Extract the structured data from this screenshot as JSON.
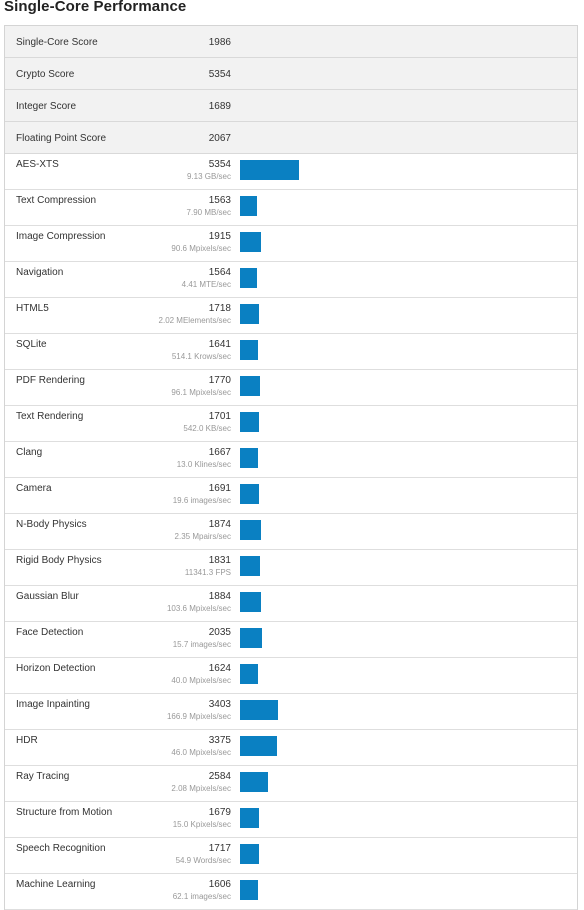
{
  "header": {
    "title": "Single-Core Performance"
  },
  "summary": [
    {
      "label": "Single-Core Score",
      "value": "1986"
    },
    {
      "label": "Crypto Score",
      "value": "5354"
    },
    {
      "label": "Integer Score",
      "value": "1689"
    },
    {
      "label": "Floating Point Score",
      "value": "2067"
    }
  ],
  "bar_color": "#0a80c2",
  "workloads": [
    {
      "label": "AES-XTS",
      "score": "5354",
      "rate": "9.13 GB/sec"
    },
    {
      "label": "Text Compression",
      "score": "1563",
      "rate": "7.90 MB/sec"
    },
    {
      "label": "Image Compression",
      "score": "1915",
      "rate": "90.6 Mpixels/sec"
    },
    {
      "label": "Navigation",
      "score": "1564",
      "rate": "4.41 MTE/sec"
    },
    {
      "label": "HTML5",
      "score": "1718",
      "rate": "2.02 MElements/sec"
    },
    {
      "label": "SQLite",
      "score": "1641",
      "rate": "514.1 Krows/sec"
    },
    {
      "label": "PDF Rendering",
      "score": "1770",
      "rate": "96.1 Mpixels/sec"
    },
    {
      "label": "Text Rendering",
      "score": "1701",
      "rate": "542.0 KB/sec"
    },
    {
      "label": "Clang",
      "score": "1667",
      "rate": "13.0 Klines/sec"
    },
    {
      "label": "Camera",
      "score": "1691",
      "rate": "19.6 images/sec"
    },
    {
      "label": "N-Body Physics",
      "score": "1874",
      "rate": "2.35 Mpairs/sec"
    },
    {
      "label": "Rigid Body Physics",
      "score": "1831",
      "rate": "11341.3 FPS"
    },
    {
      "label": "Gaussian Blur",
      "score": "1884",
      "rate": "103.6 Mpixels/sec"
    },
    {
      "label": "Face Detection",
      "score": "2035",
      "rate": "15.7 images/sec"
    },
    {
      "label": "Horizon Detection",
      "score": "1624",
      "rate": "40.0 Mpixels/sec"
    },
    {
      "label": "Image Inpainting",
      "score": "3403",
      "rate": "166.9 Mpixels/sec"
    },
    {
      "label": "HDR",
      "score": "3375",
      "rate": "46.0 Mpixels/sec"
    },
    {
      "label": "Ray Tracing",
      "score": "2584",
      "rate": "2.08 Mpixels/sec"
    },
    {
      "label": "Structure from Motion",
      "score": "1679",
      "rate": "15.0 Kpixels/sec"
    },
    {
      "label": "Speech Recognition",
      "score": "1717",
      "rate": "54.9 Words/sec"
    },
    {
      "label": "Machine Learning",
      "score": "1606",
      "rate": "62.1 images/sec"
    }
  ]
}
